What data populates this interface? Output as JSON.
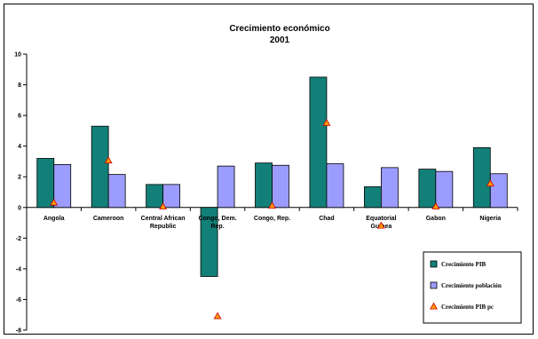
{
  "chart_data": {
    "type": "bar",
    "title": "Crecimiento económico",
    "subtitle": "2001",
    "categories": [
      "Angola",
      "Cameroon",
      "Central African Republic",
      "Congo, Dem. Rep.",
      "Congo, Rep.",
      "Chad",
      "Equatorial Guinea",
      "Gabon",
      "Nigeria"
    ],
    "category_lines": [
      [
        "Angola"
      ],
      [
        "Cameroon"
      ],
      [
        "Central African",
        "Republic"
      ],
      [
        "Congo, Dem.",
        "Rep."
      ],
      [
        "Congo, Rep."
      ],
      [
        "Chad"
      ],
      [
        "Equatorial",
        "Guinea"
      ],
      [
        "Gabon"
      ],
      [
        "Nigeria"
      ]
    ],
    "series": [
      {
        "name": "Crecimiento PIB",
        "kind": "bar",
        "color": "#128078",
        "values": [
          3.2,
          5.3,
          1.5,
          -4.5,
          2.9,
          8.5,
          1.35,
          2.5,
          3.9
        ]
      },
      {
        "name": "Crecimiento población",
        "kind": "bar",
        "color": "#9C9CFF",
        "values": [
          2.8,
          2.15,
          1.5,
          2.7,
          2.75,
          2.85,
          2.6,
          2.35,
          2.2
        ]
      },
      {
        "name": "Crecimiento PIB pc",
        "kind": "marker",
        "color": "#FF9900",
        "values": [
          0.3,
          3.05,
          0.05,
          -7.1,
          0.1,
          5.5,
          -1.2,
          0.05,
          1.55
        ]
      }
    ],
    "y_ticks": [
      10,
      8,
      6,
      4,
      2,
      0,
      -2,
      -4,
      -6,
      -8
    ],
    "ylim": [
      -8,
      10
    ],
    "grid": false,
    "legend_position": "bottom-right"
  }
}
